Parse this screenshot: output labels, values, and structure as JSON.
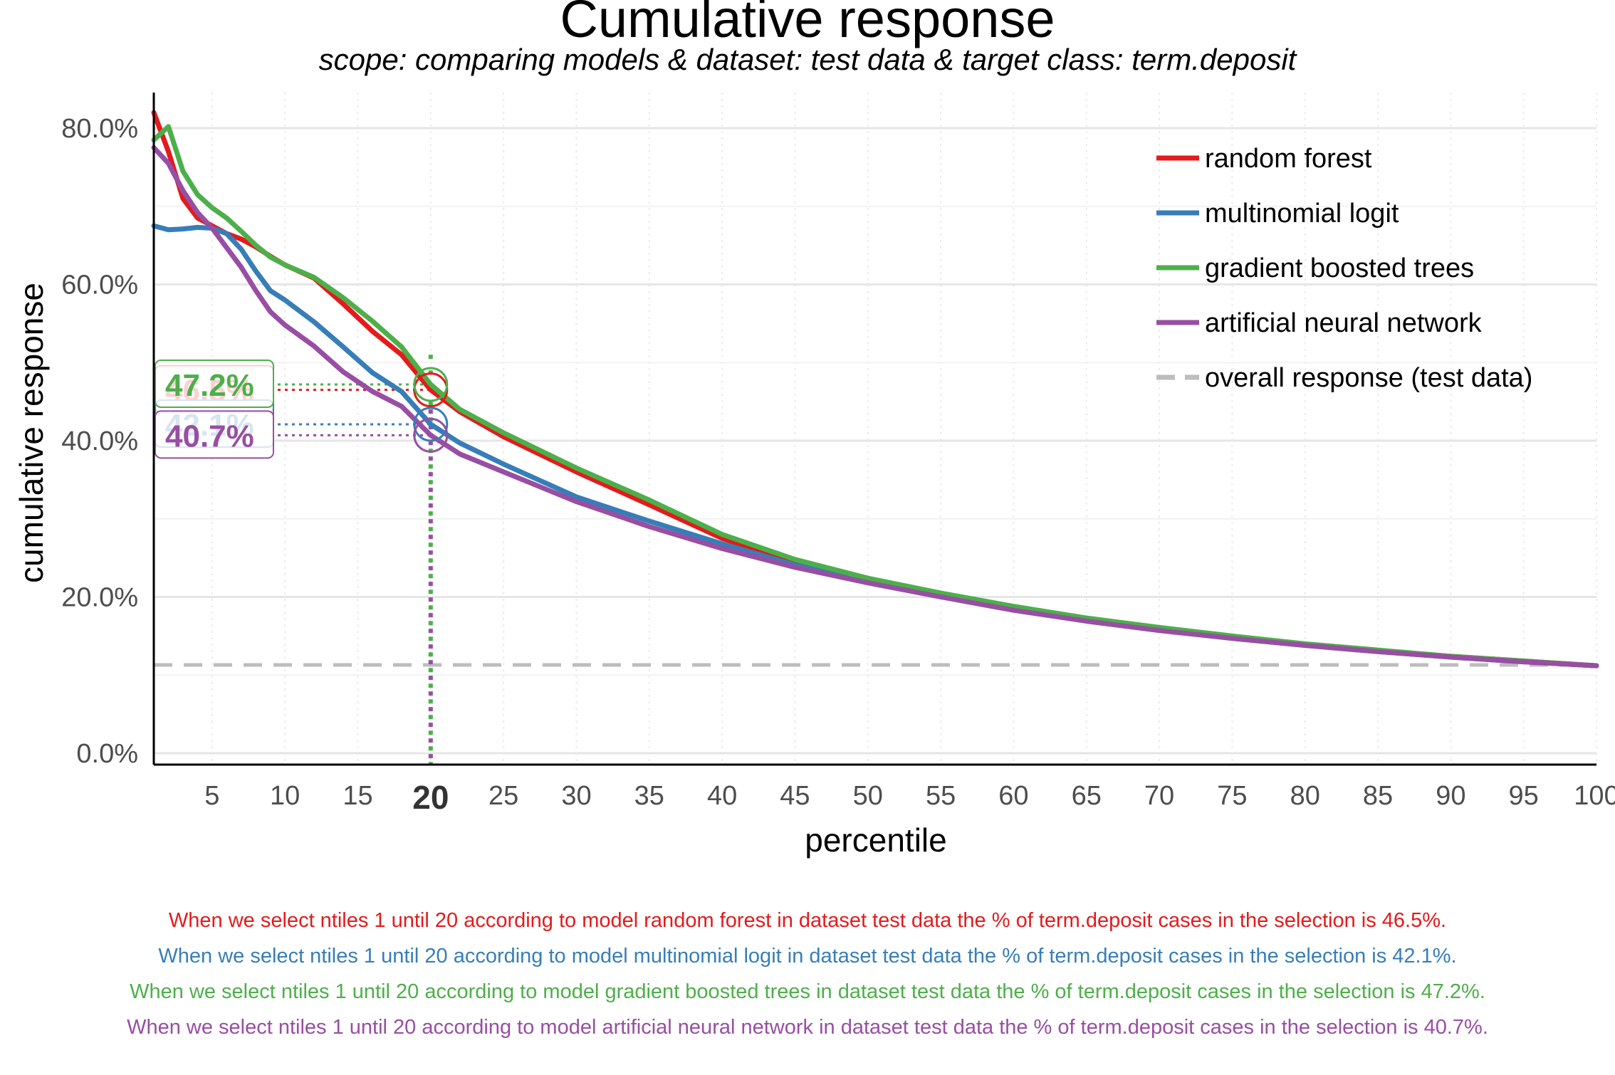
{
  "chart_data": {
    "type": "line",
    "title": "Cumulative response",
    "subtitle": "scope: comparing models & dataset: test data & target class: term.deposit",
    "xlabel": "percentile",
    "ylabel": "cumulative response",
    "xlim": [
      1,
      100
    ],
    "ylim": [
      0,
      0.8
    ],
    "x_ticks": [
      5,
      10,
      15,
      20,
      25,
      30,
      35,
      40,
      45,
      50,
      55,
      60,
      65,
      70,
      75,
      80,
      85,
      90,
      95,
      100
    ],
    "highlight_x": 20,
    "y_ticks": [
      {
        "value": 0.0,
        "label": "0.0%"
      },
      {
        "value": 0.2,
        "label": "20.0%"
      },
      {
        "value": 0.4,
        "label": "40.0%"
      },
      {
        "value": 0.6,
        "label": "60.0%"
      },
      {
        "value": 0.8,
        "label": "80.0%"
      }
    ],
    "grid": true,
    "legend_position": "top-right",
    "reference_line": {
      "name": "overall response (test data)",
      "value": 0.113,
      "color": "#bdbdbd",
      "style": "dashed"
    },
    "series": [
      {
        "name": "random forest",
        "color": "#e41a1c",
        "points": [
          [
            1,
            0.82
          ],
          [
            2,
            0.77
          ],
          [
            3,
            0.71
          ],
          [
            4,
            0.685
          ],
          [
            5,
            0.675
          ],
          [
            6,
            0.665
          ],
          [
            7,
            0.658
          ],
          [
            8,
            0.648
          ],
          [
            9,
            0.636
          ],
          [
            10,
            0.625
          ],
          [
            12,
            0.608
          ],
          [
            14,
            0.575
          ],
          [
            16,
            0.54
          ],
          [
            18,
            0.51
          ],
          [
            20,
            0.465
          ],
          [
            22,
            0.437
          ],
          [
            25,
            0.405
          ],
          [
            30,
            0.36
          ],
          [
            35,
            0.318
          ],
          [
            40,
            0.275
          ],
          [
            45,
            0.244
          ],
          [
            50,
            0.222
          ],
          [
            55,
            0.203
          ],
          [
            60,
            0.186
          ],
          [
            65,
            0.172
          ],
          [
            70,
            0.16
          ],
          [
            75,
            0.149
          ],
          [
            80,
            0.139
          ],
          [
            85,
            0.131
          ],
          [
            90,
            0.124
          ],
          [
            95,
            0.118
          ],
          [
            100,
            0.112
          ]
        ]
      },
      {
        "name": "multinomial logit",
        "color": "#377eb8",
        "points": [
          [
            1,
            0.675
          ],
          [
            2,
            0.67
          ],
          [
            3,
            0.671
          ],
          [
            4,
            0.673
          ],
          [
            5,
            0.672
          ],
          [
            6,
            0.665
          ],
          [
            7,
            0.645
          ],
          [
            8,
            0.617
          ],
          [
            9,
            0.592
          ],
          [
            10,
            0.58
          ],
          [
            12,
            0.552
          ],
          [
            14,
            0.52
          ],
          [
            16,
            0.487
          ],
          [
            18,
            0.463
          ],
          [
            20,
            0.421
          ],
          [
            22,
            0.397
          ],
          [
            25,
            0.37
          ],
          [
            30,
            0.328
          ],
          [
            35,
            0.297
          ],
          [
            40,
            0.268
          ],
          [
            45,
            0.241
          ],
          [
            50,
            0.22
          ],
          [
            55,
            0.201
          ],
          [
            60,
            0.184
          ],
          [
            65,
            0.17
          ],
          [
            70,
            0.158
          ],
          [
            75,
            0.147
          ],
          [
            80,
            0.138
          ],
          [
            85,
            0.13
          ],
          [
            90,
            0.123
          ],
          [
            95,
            0.117
          ],
          [
            100,
            0.112
          ]
        ]
      },
      {
        "name": "gradient boosted trees",
        "color": "#4daf4a",
        "points": [
          [
            1,
            0.785
          ],
          [
            2,
            0.802
          ],
          [
            3,
            0.745
          ],
          [
            4,
            0.715
          ],
          [
            5,
            0.698
          ],
          [
            6,
            0.685
          ],
          [
            7,
            0.668
          ],
          [
            8,
            0.65
          ],
          [
            9,
            0.635
          ],
          [
            10,
            0.625
          ],
          [
            12,
            0.609
          ],
          [
            14,
            0.583
          ],
          [
            16,
            0.553
          ],
          [
            18,
            0.52
          ],
          [
            20,
            0.472
          ],
          [
            22,
            0.44
          ],
          [
            25,
            0.41
          ],
          [
            30,
            0.365
          ],
          [
            35,
            0.324
          ],
          [
            40,
            0.28
          ],
          [
            45,
            0.248
          ],
          [
            50,
            0.224
          ],
          [
            55,
            0.205
          ],
          [
            60,
            0.188
          ],
          [
            65,
            0.173
          ],
          [
            70,
            0.161
          ],
          [
            75,
            0.15
          ],
          [
            80,
            0.14
          ],
          [
            85,
            0.132
          ],
          [
            90,
            0.124
          ],
          [
            95,
            0.118
          ],
          [
            100,
            0.112
          ]
        ]
      },
      {
        "name": "artificial neural network",
        "color": "#984ea3",
        "points": [
          [
            1,
            0.775
          ],
          [
            2,
            0.755
          ],
          [
            3,
            0.72
          ],
          [
            4,
            0.692
          ],
          [
            5,
            0.672
          ],
          [
            6,
            0.647
          ],
          [
            7,
            0.622
          ],
          [
            8,
            0.592
          ],
          [
            9,
            0.565
          ],
          [
            10,
            0.548
          ],
          [
            12,
            0.521
          ],
          [
            14,
            0.488
          ],
          [
            16,
            0.463
          ],
          [
            18,
            0.444
          ],
          [
            20,
            0.407
          ],
          [
            22,
            0.383
          ],
          [
            25,
            0.36
          ],
          [
            30,
            0.322
          ],
          [
            35,
            0.29
          ],
          [
            40,
            0.262
          ],
          [
            45,
            0.238
          ],
          [
            50,
            0.218
          ],
          [
            55,
            0.2
          ],
          [
            60,
            0.183
          ],
          [
            65,
            0.169
          ],
          [
            70,
            0.157
          ],
          [
            75,
            0.147
          ],
          [
            80,
            0.138
          ],
          [
            85,
            0.13
          ],
          [
            90,
            0.123
          ],
          [
            95,
            0.117
          ],
          [
            100,
            0.112
          ]
        ]
      }
    ],
    "annotations": [
      {
        "series": "random forest",
        "label": "46.5%",
        "value": 0.465,
        "color": "#e41a1c"
      },
      {
        "series": "multinomial logit",
        "label": "42.1%",
        "value": 0.421,
        "color": "#377eb8"
      },
      {
        "series": "gradient boosted trees",
        "label": "47.2%",
        "value": 0.472,
        "color": "#4daf4a"
      },
      {
        "series": "artificial neural network",
        "label": "40.7%",
        "value": 0.407,
        "color": "#984ea3"
      }
    ]
  },
  "footer_lines": [
    {
      "text": "When we select ntiles 1 until 20 according to model random forest in dataset test data the % of term.deposit cases in the selection is 46.5%.",
      "color": "#e41a1c"
    },
    {
      "text": "When we select ntiles 1 until 20 according to model multinomial logit in dataset test data the % of term.deposit cases in the selection is 42.1%.",
      "color": "#377eb8"
    },
    {
      "text": "When we select ntiles 1 until 20 according to model gradient boosted trees in dataset test data the % of term.deposit cases in the selection is 47.2%.",
      "color": "#4daf4a"
    },
    {
      "text": "When we select ntiles 1 until 20 according to model artificial neural network in dataset test data the % of term.deposit cases in the selection is 40.7%.",
      "color": "#984ea3"
    }
  ]
}
